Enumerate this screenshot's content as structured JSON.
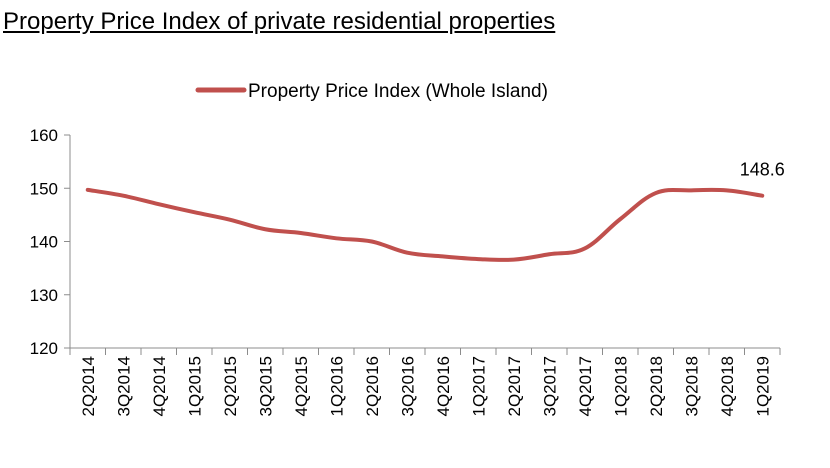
{
  "chart_data": {
    "type": "line",
    "title": "Property Price Index of private residential properties",
    "xlabel": "",
    "ylabel": "",
    "ylim": [
      120,
      160
    ],
    "yticks": [
      120,
      130,
      140,
      150,
      160
    ],
    "categories": [
      "2Q2014",
      "3Q2014",
      "4Q2014",
      "1Q2015",
      "2Q2015",
      "3Q2015",
      "4Q2015",
      "1Q2016",
      "2Q2016",
      "3Q2016",
      "4Q2016",
      "1Q2017",
      "2Q2017",
      "3Q2017",
      "4Q2017",
      "1Q2018",
      "2Q2018",
      "3Q2018",
      "4Q2018",
      "1Q2019"
    ],
    "series": [
      {
        "name": "Property Price Index (Whole Island)",
        "color": "#c0504d",
        "values": [
          149.7,
          148.6,
          147.0,
          145.5,
          144.1,
          142.3,
          141.6,
          140.6,
          140.0,
          137.9,
          137.2,
          136.7,
          136.6,
          137.6,
          138.7,
          144.2,
          149.1,
          149.6,
          149.6,
          148.6
        ]
      }
    ],
    "annotations": [
      {
        "category": "1Q2019",
        "text": "148.6"
      }
    ],
    "legend_position": "top-center",
    "grid": false
  }
}
